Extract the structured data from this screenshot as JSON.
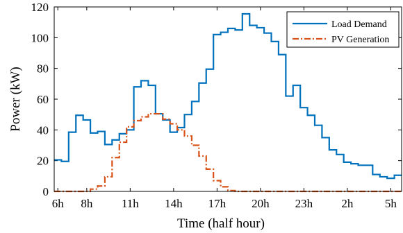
{
  "chart_data": {
    "type": "line",
    "step": true,
    "xlabel": "Time (half hour)",
    "ylabel": "Power (kW)",
    "ylim": [
      0,
      120
    ],
    "yticks": [
      0,
      20,
      40,
      60,
      80,
      100,
      120
    ],
    "xticks": [
      {
        "half_hour_index": 0,
        "label": "6h"
      },
      {
        "half_hour_index": 4,
        "label": "8h"
      },
      {
        "half_hour_index": 10,
        "label": "11h"
      },
      {
        "half_hour_index": 16,
        "label": "14h"
      },
      {
        "half_hour_index": 22,
        "label": "17h"
      },
      {
        "half_hour_index": 28,
        "label": "20h"
      },
      {
        "half_hour_index": 34,
        "label": "23h"
      },
      {
        "half_hour_index": 40,
        "label": "2h"
      },
      {
        "half_hour_index": 46,
        "label": "5h"
      }
    ],
    "xlim": [
      -0.5,
      47.5
    ],
    "legend_position": "top-right",
    "series": [
      {
        "name": "Load Demand",
        "color": "#0072BD",
        "style": "solid",
        "values": [
          20.5,
          19.5,
          38.5,
          49.5,
          46.5,
          38,
          39,
          30.5,
          33.5,
          37.5,
          40,
          68,
          72,
          69,
          50.5,
          46.5,
          38.5,
          41.5,
          50,
          58.5,
          70.5,
          79.5,
          102,
          103.5,
          106,
          105,
          115.5,
          108,
          106.5,
          103,
          97.5,
          89,
          62,
          69,
          54.5,
          49.5,
          43,
          35,
          27,
          24,
          19,
          18,
          17,
          17,
          11,
          9.5,
          8.5,
          10.5
        ]
      },
      {
        "name": "PV Generation",
        "color": "#D95319",
        "style": "dashdot",
        "values": [
          0,
          0,
          0,
          0,
          0,
          1.5,
          3.5,
          9.5,
          22,
          32,
          42,
          46,
          48.5,
          50.5,
          50.5,
          47,
          44,
          40,
          36,
          30,
          23,
          14.5,
          7,
          3,
          0.5,
          0,
          0,
          0,
          0,
          0,
          0,
          0,
          0,
          0,
          0,
          0,
          0,
          0,
          0,
          0,
          0,
          0,
          0,
          0,
          0,
          0,
          0,
          0
        ]
      }
    ]
  }
}
